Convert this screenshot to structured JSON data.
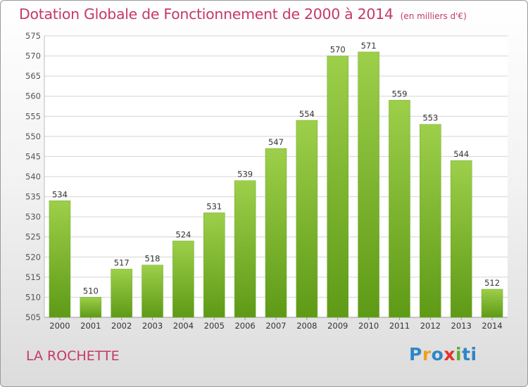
{
  "header": {
    "title": "Dotation Globale de Fonctionnement de 2000 à 2014",
    "subtitle": "(en milliers d'€)"
  },
  "footer": {
    "place": "LA ROCHETTE",
    "brand": "Proxiti"
  },
  "colors": {
    "title": "#c5386c",
    "bar_top": "#9dcf4a",
    "bar_bottom": "#5e9a16",
    "grid": "#d4d4d4"
  },
  "chart_data": {
    "type": "bar",
    "title": "Dotation Globale de Fonctionnement de 2000 à 2014",
    "subtitle": "(en milliers d'€)",
    "xlabel": "",
    "ylabel": "",
    "categories": [
      "2000",
      "2001",
      "2002",
      "2003",
      "2004",
      "2005",
      "2006",
      "2007",
      "2008",
      "2009",
      "2010",
      "2011",
      "2012",
      "2013",
      "2014"
    ],
    "values": [
      534,
      510,
      517,
      518,
      524,
      531,
      539,
      547,
      554,
      570,
      571,
      559,
      553,
      544,
      512
    ],
    "ylim": [
      505,
      575
    ],
    "yticks": [
      505,
      510,
      515,
      520,
      525,
      530,
      535,
      540,
      545,
      550,
      555,
      560,
      565,
      570,
      575
    ],
    "grid": true,
    "data_labels": true,
    "legend": "none"
  }
}
